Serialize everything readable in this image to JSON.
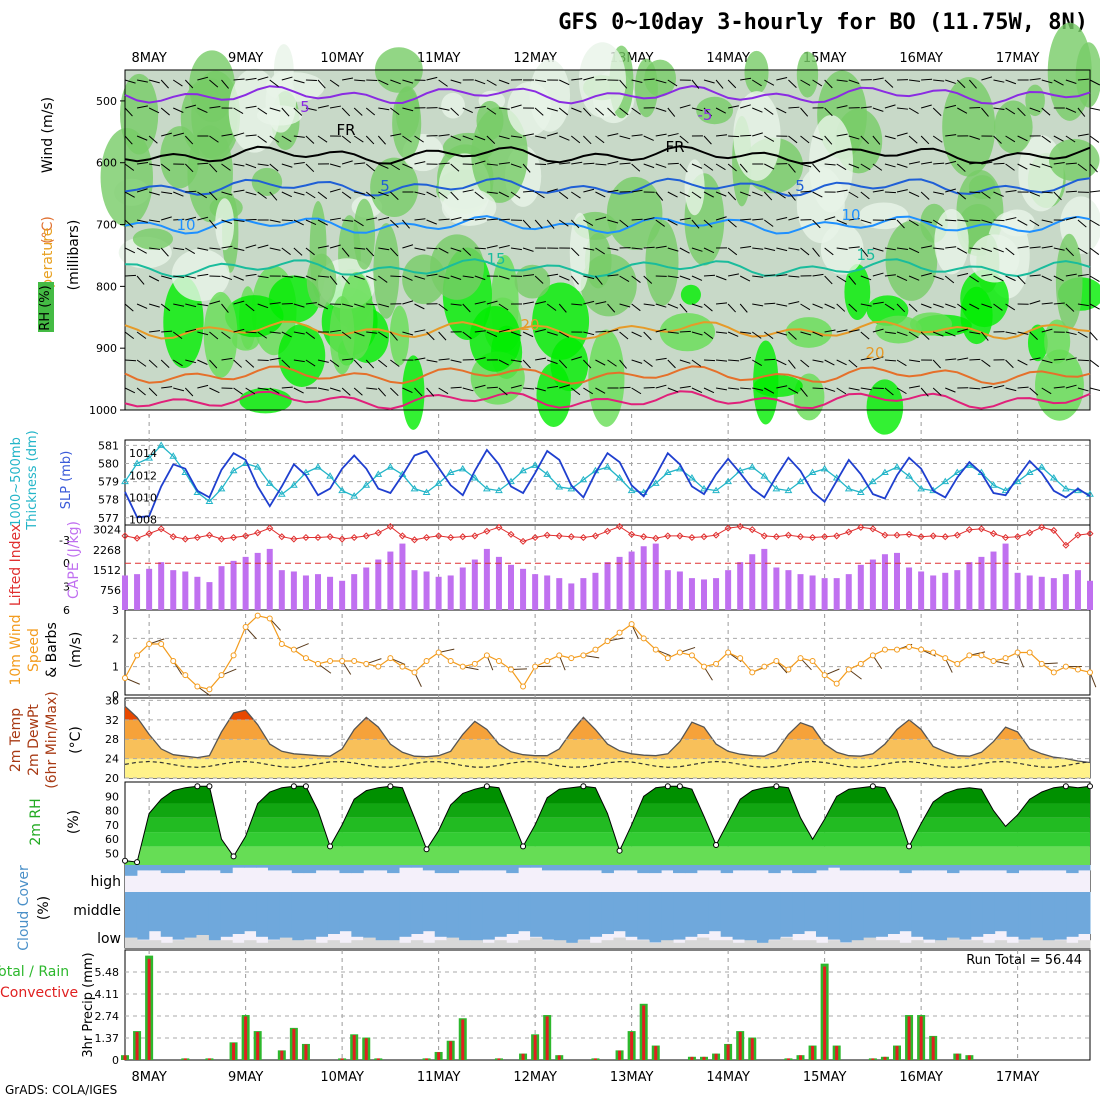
{
  "title": "GFS 0~10day 3-hourly for BO (11.75W, 8N)",
  "credit": "GrADS: COLA/IGES",
  "dates": [
    "8MAY",
    "9MAY",
    "10MAY",
    "11MAY",
    "12MAY",
    "13MAY",
    "14MAY",
    "15MAY",
    "16MAY",
    "17MAY"
  ],
  "panels": {
    "upper": {
      "labels": {
        "wind": "Wind (m/s)",
        "temp": "(°C)",
        "temp_word": "Temperature",
        "rh": "RH (%)",
        "mb": "(millibars)"
      },
      "yticks": [
        "500",
        "600",
        "700",
        "800",
        "900",
        "1000"
      ]
    },
    "slp": {
      "labels": {
        "thick": "Thickness (dm)",
        "thick2": "1000~500mb",
        "slp": "SLP (mb)"
      },
      "left_ticks": [
        "581",
        "580",
        "579",
        "578",
        "577"
      ],
      "right_ticks": [
        "1014",
        "1012",
        "1010",
        "1008"
      ]
    },
    "cape": {
      "labels": {
        "li": "Lifted Index",
        "cape": "CAPE (J/kg)"
      },
      "left_ticks": [
        "-3",
        "0",
        "3",
        "6"
      ],
      "right_ticks": [
        "3024",
        "2268",
        "1512",
        "756"
      ]
    },
    "wind10": {
      "labels": {
        "a": "10m Wind",
        "b": "Speed",
        "c": "& Barbs",
        "d": "(m/s)"
      },
      "yticks": [
        "3",
        "2",
        "1",
        "0"
      ]
    },
    "temp2m": {
      "labels": {
        "a": "2m Temp",
        "b": "2m DewPt",
        "c": "(6hr Min/Max)",
        "d": "(°C)"
      },
      "yticks": [
        "36",
        "32",
        "28",
        "24",
        "20"
      ]
    },
    "rh2m": {
      "labels": {
        "a": "2m RH",
        "b": "(%)"
      },
      "yticks": [
        "90",
        "80",
        "70",
        "60",
        "50"
      ]
    },
    "cloud": {
      "labels": {
        "a": "Cloud Cover",
        "b": "(%)",
        "high": "high",
        "middle": "middle",
        "low": "low"
      }
    },
    "precip": {
      "labels": {
        "a": "Total / Rain",
        "b": "Convective",
        "c": "3hr Precip (mm)"
      },
      "yticks": [
        "5.48",
        "4.11",
        "2.74",
        "1.37",
        "0"
      ],
      "run_total": "Run Total = 56.44"
    }
  },
  "colors": {
    "slp": "#1f3fcf",
    "thick": "#23b5c8",
    "li": "#e03030",
    "cape": "#c070f0",
    "wind": "#f39c1e",
    "temp_hi": "#e84800",
    "temp_mid": "#f6a23a",
    "temp_lo": "#fff28a",
    "rh": "#00a000",
    "cloud_bg": "#f4f0fa",
    "cloud": "#6fa8dc",
    "cloud_low": "#d8d8d8",
    "precip_g": "#2db82d",
    "precip_r": "#e02020"
  },
  "chart_data": {
    "type": "meteogram",
    "x_steps": 81,
    "x_labels_index": [
      2,
      10,
      18,
      26,
      34,
      42,
      50,
      58,
      66,
      74
    ],
    "slp_mb": [
      1010.5,
      1008.2,
      1008.3,
      1011,
      1013,
      1012.6,
      1010.6,
      1010,
      1012.5,
      1014,
      1013.4,
      1011,
      1009.2,
      1011,
      1013,
      1012,
      1010.2,
      1010.8,
      1012.6,
      1013.8,
      1012.6,
      1010.8,
      1010.4,
      1012,
      1013.8,
      1014.2,
      1012.7,
      1011.1,
      1010.2,
      1012.4,
      1014.3,
      1013,
      1011,
      1010.4,
      1012.2,
      1014.2,
      1013.4,
      1011.1,
      1010,
      1012.2,
      1014,
      1013.2,
      1011.1,
      1010.1,
      1012,
      1014,
      1013,
      1011,
      1010.3,
      1012.1,
      1013.5,
      1012.2,
      1010.8,
      1010,
      1011.9,
      1013.6,
      1012.4,
      1010.5,
      1009.6,
      1011.5,
      1013.4,
      1012.1,
      1010.3,
      1009.9,
      1012,
      1013.6,
      1012.6,
      1010.6,
      1010,
      1011.8,
      1013.2,
      1012.2,
      1010.4,
      1010.2,
      1011.8,
      1013.3,
      1012.2,
      1010.6,
      1010,
      1010.8,
      1010.1
    ],
    "thickness_dm": [
      579,
      580,
      580.3,
      581,
      580.4,
      579.5,
      578.4,
      577.9,
      578.6,
      579.6,
      580,
      579.8,
      578.9,
      578.3,
      578.8,
      579.5,
      579.8,
      579.3,
      578.5,
      578.2,
      578.8,
      579.4,
      579.8,
      579.4,
      578.6,
      578.4,
      578.9,
      579.5,
      579.7,
      579.2,
      578.6,
      578.5,
      579,
      579.6,
      579.9,
      579.4,
      578.7,
      578.6,
      579.1,
      579.6,
      579.8,
      579.2,
      578.5,
      578.4,
      578.9,
      579.5,
      579.7,
      579.2,
      578.6,
      578.5,
      579,
      579.6,
      579.8,
      579.3,
      578.6,
      578.5,
      579,
      579.5,
      579.7,
      579.2,
      578.6,
      578.4,
      579,
      579.5,
      579.8,
      579.3,
      578.6,
      578.5,
      579,
      579.5,
      579.9,
      579.5,
      578.8,
      578.5,
      579,
      579.5,
      579.8,
      579.2,
      578.6,
      578.5,
      578.3
    ],
    "cape_jkg": [
      1300,
      1350,
      1550,
      1800,
      1500,
      1450,
      1250,
      1050,
      1650,
      1850,
      2000,
      2150,
      2300,
      1500,
      1450,
      1300,
      1350,
      1250,
      1100,
      1350,
      1600,
      1900,
      2200,
      2500,
      1500,
      1450,
      1250,
      1300,
      1600,
      1900,
      2300,
      2000,
      1700,
      1550,
      1350,
      1300,
      1200,
      1000,
      1200,
      1400,
      1800,
      2000,
      2200,
      2400,
      2500,
      1500,
      1450,
      1200,
      1150,
      1200,
      1500,
      1800,
      2100,
      2300,
      1600,
      1500,
      1350,
      1300,
      1200,
      1200,
      1350,
      1700,
      1900,
      2100,
      2150,
      1600,
      1450,
      1300,
      1400,
      1500,
      1800,
      2000,
      2200,
      2500,
      1400,
      1300,
      1250,
      1200,
      1350,
      1500,
      1100
    ],
    "lifted_index": [
      -3.5,
      -3.2,
      -3.8,
      -4.4,
      -3.4,
      -3.1,
      -3.3,
      -3.6,
      -3.1,
      -3.3,
      -3.5,
      -3.9,
      -4.5,
      -3.4,
      -3.1,
      -3.3,
      -3.3,
      -3.4,
      -3.1,
      -3.3,
      -3.5,
      -3.9,
      -4.7,
      -3.5,
      -3,
      -3.3,
      -3.5,
      -3.3,
      -3.4,
      -3.5,
      -4.1,
      -4.6,
      -3.7,
      -2.8,
      -3.3,
      -3.6,
      -3.5,
      -3.4,
      -3.3,
      -3.5,
      -4.1,
      -4.7,
      -3.7,
      -3.4,
      -3.2,
      -3.5,
      -3.5,
      -3.3,
      -3.4,
      -3.6,
      -4.5,
      -4.7,
      -4.3,
      -3.5,
      -3.4,
      -3.6,
      -3.4,
      -3.3,
      -3.4,
      -3.5,
      -4,
      -4.6,
      -4.4,
      -3.6,
      -3.6,
      -3.7,
      -3.4,
      -3.5,
      -3.4,
      -3.6,
      -4.3,
      -4.4,
      -3.8,
      -3.3,
      -3.4,
      -3.9,
      -4.6,
      -4.2,
      -2.3,
      -3.6,
      -3.8
    ],
    "wind10_ms": [
      0.6,
      1.4,
      1.8,
      1.8,
      1.2,
      0.7,
      0.3,
      0.2,
      0.7,
      1.4,
      2.4,
      2.8,
      2.7,
      1.8,
      1.6,
      1.3,
      1.1,
      1.2,
      1.2,
      1.2,
      1.1,
      1.0,
      1.3,
      1.0,
      0.8,
      1.2,
      1.5,
      1.2,
      1.0,
      1.1,
      1.4,
      1.2,
      0.9,
      0.3,
      1.0,
      1.2,
      1.4,
      1.3,
      1.4,
      1.6,
      1.9,
      2.2,
      2.5,
      2.0,
      1.6,
      1.3,
      1.5,
      1.4,
      1.0,
      1.1,
      1.5,
      1.3,
      0.8,
      1.0,
      1.2,
      0.9,
      1.3,
      1.2,
      0.7,
      0.4,
      0.9,
      1.1,
      1.4,
      1.6,
      1.6,
      1.7,
      1.6,
      1.5,
      1.3,
      1.1,
      1.4,
      1.4,
      1.2,
      1.3,
      1.5,
      1.5,
      1.1,
      0.8,
      1.0,
      0.9,
      0.8
    ],
    "temp_2m_c": [
      34.8,
      32.5,
      29,
      26,
      24.8,
      24.5,
      24.2,
      24.6,
      29.5,
      33.4,
      34,
      31,
      27,
      25.5,
      25,
      24.8,
      24.6,
      24.5,
      26,
      30,
      32.5,
      30.5,
      27,
      25.3,
      24.5,
      24.4,
      24.6,
      25.5,
      29,
      31.7,
      30,
      27,
      25.4,
      24.8,
      24.6,
      24.6,
      26,
      29.5,
      32.5,
      30,
      27,
      25.6,
      25,
      24.7,
      24.6,
      25,
      27.5,
      31.5,
      30.5,
      27,
      25.5,
      24.9,
      24.6,
      24.5,
      25.5,
      29,
      31.4,
      30.5,
      27,
      25.3,
      24.6,
      24.5,
      25,
      27,
      30,
      32,
      30,
      26.5,
      25.4,
      24.6,
      24.5,
      25.3,
      27.5,
      30.5,
      29.5,
      26,
      25,
      24.3,
      24,
      23.5,
      23.2
    ],
    "rh_2m_pct": [
      45,
      44,
      78,
      88,
      94,
      96,
      97,
      97,
      60,
      48,
      62,
      85,
      93,
      96,
      97,
      97,
      80,
      55,
      70,
      88,
      94,
      96,
      97,
      96,
      75,
      53,
      66,
      84,
      92,
      95,
      97,
      96,
      76,
      55,
      70,
      89,
      95,
      96,
      97,
      96,
      78,
      52,
      70,
      90,
      96,
      97,
      97,
      95,
      76,
      56,
      72,
      88,
      94,
      96,
      97,
      96,
      75,
      60,
      74,
      90,
      95,
      96,
      97,
      96,
      80,
      55,
      71,
      86,
      92,
      95,
      96,
      95,
      80,
      69,
      77,
      88,
      93,
      96,
      97,
      96,
      97
    ],
    "precip_total_mm": [
      0.3,
      1.8,
      6.5,
      0,
      0,
      0.1,
      0,
      0.1,
      0,
      1.1,
      2.8,
      1.8,
      0,
      0.6,
      2.0,
      1.0,
      0,
      0,
      0.1,
      1.6,
      1.4,
      0.1,
      0,
      0,
      0,
      0.1,
      0.5,
      1.2,
      2.6,
      0,
      0,
      0.1,
      0,
      0.4,
      1.6,
      2.8,
      0.3,
      0,
      0,
      0.1,
      0,
      0.6,
      1.8,
      3.5,
      0.9,
      0,
      0,
      0.2,
      0.2,
      0.4,
      1.0,
      1.8,
      1.4,
      0,
      0,
      0.1,
      0.3,
      0.9,
      6.0,
      0.9,
      0,
      0,
      0.1,
      0.2,
      0.9,
      2.8,
      2.8,
      1.5,
      0,
      0.4,
      0.3,
      0,
      0,
      0,
      0,
      0,
      0,
      0,
      0,
      0,
      0
    ],
    "cloud_high_pct": [
      40,
      20,
      20,
      30,
      30,
      20,
      20,
      20,
      30,
      10,
      10,
      10,
      20,
      20,
      30,
      30,
      20,
      20,
      30,
      30,
      20,
      20,
      30,
      10,
      10,
      20,
      30,
      30,
      20,
      20,
      20,
      20,
      30,
      10,
      10,
      20,
      20,
      20,
      20,
      20,
      30,
      20,
      20,
      30,
      30,
      20,
      30,
      30,
      20,
      20,
      30,
      20,
      20,
      20,
      30,
      20,
      30,
      30,
      20,
      10,
      20,
      20,
      20,
      20,
      20,
      30,
      20,
      20,
      20,
      30,
      20,
      20,
      20,
      20,
      30,
      20,
      20,
      20,
      20,
      30,
      20
    ],
    "cloud_mid_pct": [
      90,
      85,
      70,
      80,
      85,
      90,
      95,
      90,
      80,
      75,
      70,
      80,
      85,
      90,
      95,
      85,
      80,
      75,
      70,
      80,
      85,
      90,
      90,
      80,
      75,
      70,
      80,
      85,
      90,
      95,
      85,
      80,
      75,
      70,
      80,
      85,
      90,
      95,
      85,
      80,
      75,
      70,
      80,
      85,
      90,
      95,
      85,
      80,
      75,
      70,
      80,
      85,
      90,
      95,
      85,
      80,
      75,
      70,
      80,
      85,
      90,
      95,
      85,
      80,
      75,
      70,
      80,
      85,
      90,
      95,
      85,
      80,
      75,
      70,
      80,
      85,
      90,
      95,
      85,
      80,
      75
    ],
    "cloud_low_pct": [
      40,
      30,
      30,
      20,
      30,
      40,
      50,
      30,
      30,
      20,
      30,
      20,
      30,
      40,
      30,
      30,
      20,
      30,
      20,
      30,
      40,
      30,
      30,
      20,
      30,
      20,
      30,
      40,
      30,
      30,
      20,
      30,
      20,
      30,
      40,
      30,
      30,
      20,
      30,
      20,
      30,
      40,
      30,
      30,
      20,
      30,
      20,
      30,
      40,
      30,
      30,
      20,
      30,
      20,
      30,
      40,
      30,
      30,
      20,
      30,
      20,
      30,
      40,
      30,
      30,
      20,
      30,
      20,
      30,
      40,
      30,
      30,
      20,
      30,
      20,
      30,
      40,
      30,
      30,
      20,
      30
    ]
  }
}
